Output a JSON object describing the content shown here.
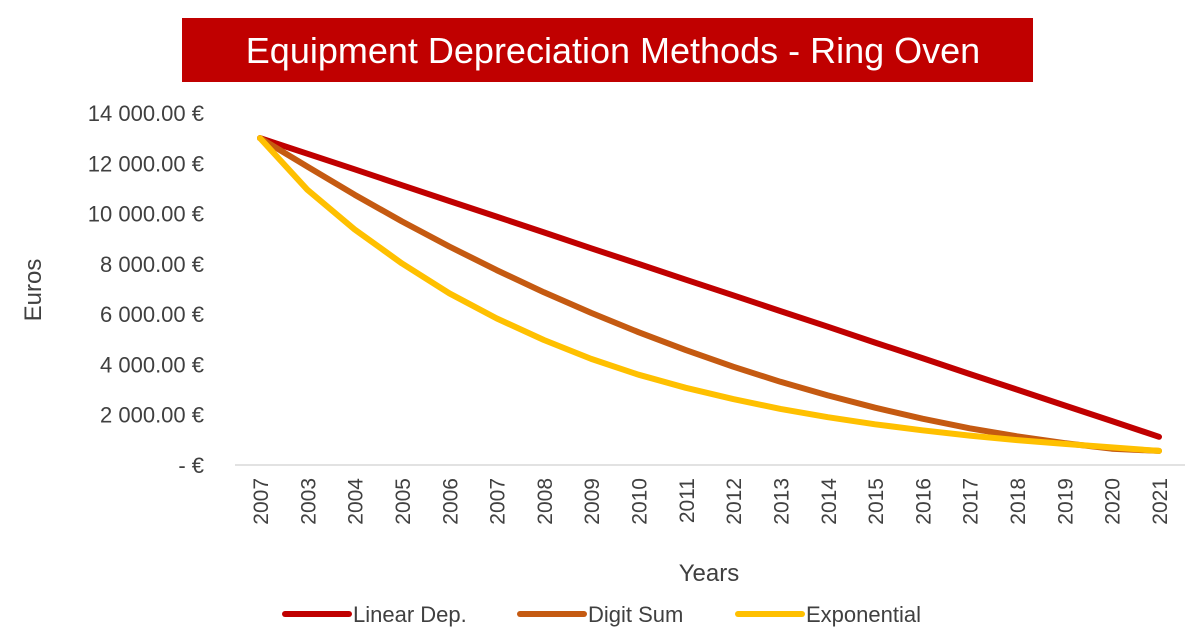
{
  "chart_data": {
    "type": "line",
    "title": "Equipment Depreciation Methods - Ring Oven",
    "xlabel": "Years",
    "ylabel": "Euros",
    "categories": [
      "2007",
      "2003",
      "2004",
      "2005",
      "2006",
      "2007",
      "2008",
      "2009",
      "2010",
      "2011",
      "2012",
      "2013",
      "2014",
      "2015",
      "2016",
      "2017",
      "2018",
      "2019",
      "2020",
      "2021"
    ],
    "y_ticks": [
      "-  €",
      "2 000.00 €",
      "4 000.00 €",
      "6 000.00 €",
      "8 000.00 €",
      "10 000.00 €",
      "12 000.00 €",
      "14 000.00 €"
    ],
    "ylim": [
      0,
      14000
    ],
    "grid": false,
    "legend": "bottom",
    "series": [
      {
        "name": "Linear Dep.",
        "color": "#C00000",
        "values": [
          13000,
          12380,
          11760,
          11130,
          10500,
          9880,
          9250,
          8620,
          8000,
          7370,
          6750,
          6120,
          5500,
          4870,
          4250,
          3620,
          3000,
          2370,
          1750,
          1120
        ]
      },
      {
        "name": "Digit Sum",
        "color": "#C55A11",
        "values": [
          13000,
          11870,
          10750,
          9690,
          8690,
          7750,
          6870,
          6050,
          5280,
          4570,
          3910,
          3310,
          2770,
          2280,
          1840,
          1460,
          1140,
          870,
          650,
          560
        ]
      },
      {
        "name": "Exponential",
        "color": "#FFC000",
        "values": [
          13000,
          10950,
          9370,
          8020,
          6830,
          5830,
          4970,
          4220,
          3590,
          3070,
          2620,
          2230,
          1900,
          1620,
          1380,
          1170,
          990,
          840,
          700,
          560
        ]
      }
    ]
  }
}
